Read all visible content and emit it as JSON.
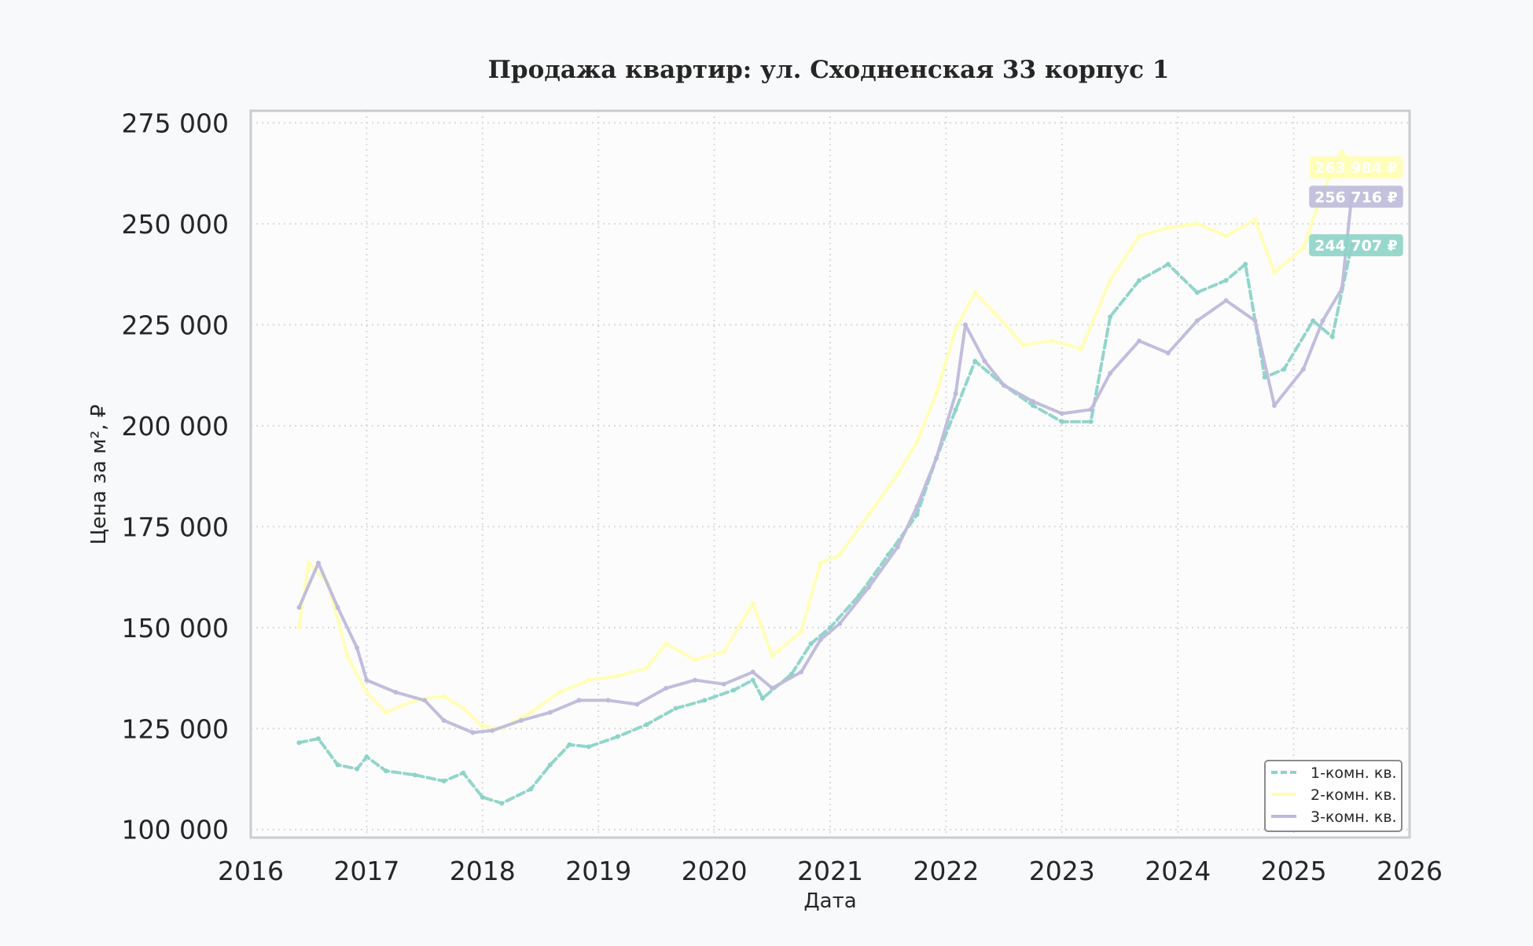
{
  "chart_data": {
    "type": "line",
    "title": "Продажа квартир: ул. Сходненская 33 корпус 1",
    "xlabel": "Дата",
    "ylabel": "Цена за м², ₽",
    "xlim": [
      2016,
      2026
    ],
    "ylim": [
      98000,
      278000
    ],
    "x_ticks": [
      "2016",
      "2017",
      "2018",
      "2019",
      "2020",
      "2021",
      "2022",
      "2023",
      "2024",
      "2025",
      "2026"
    ],
    "y_ticks": [
      {
        "value": 100000,
        "label": "100 000"
      },
      {
        "value": 125000,
        "label": "125 000"
      },
      {
        "value": 150000,
        "label": "150 000"
      },
      {
        "value": 175000,
        "label": "175 000"
      },
      {
        "value": 200000,
        "label": "200 000"
      },
      {
        "value": 225000,
        "label": "225 000"
      },
      {
        "value": 250000,
        "label": "250 000"
      },
      {
        "value": 275000,
        "label": "275 000"
      }
    ],
    "grid": true,
    "legend_position": "bottom-right",
    "series": [
      {
        "name": "1-комн. кв.",
        "color": "#8dd3c7",
        "line_style": "dashed",
        "end_label": "244 707 ₽",
        "end_value": 244707,
        "points": [
          [
            "2016-06",
            121500
          ],
          [
            "2016-08",
            122500
          ],
          [
            "2016-10",
            116000
          ],
          [
            "2016-12",
            115000
          ],
          [
            "2017-01",
            118000
          ],
          [
            "2017-03",
            114500
          ],
          [
            "2017-06",
            113500
          ],
          [
            "2017-09",
            112000
          ],
          [
            "2017-11",
            114000
          ],
          [
            "2018-01",
            108000
          ],
          [
            "2018-03",
            106500
          ],
          [
            "2018-06",
            110000
          ],
          [
            "2018-08",
            116000
          ],
          [
            "2018-10",
            121000
          ],
          [
            "2018-12",
            120500
          ],
          [
            "2019-03",
            123000
          ],
          [
            "2019-06",
            126000
          ],
          [
            "2019-09",
            130000
          ],
          [
            "2019-12",
            132000
          ],
          [
            "2020-03",
            134500
          ],
          [
            "2020-05",
            137000
          ],
          [
            "2020-06",
            132500
          ],
          [
            "2020-09",
            138500
          ],
          [
            "2020-11",
            146000
          ],
          [
            "2021-01",
            150000
          ],
          [
            "2021-04",
            158000
          ],
          [
            "2021-07",
            168000
          ],
          [
            "2021-10",
            178000
          ],
          [
            "2021-12",
            192000
          ],
          [
            "2022-02",
            204000
          ],
          [
            "2022-04",
            216000
          ],
          [
            "2022-07",
            210000
          ],
          [
            "2022-10",
            205000
          ],
          [
            "2023-01",
            201000
          ],
          [
            "2023-04",
            201000
          ],
          [
            "2023-06",
            227000
          ],
          [
            "2023-09",
            236000
          ],
          [
            "2023-12",
            240000
          ],
          [
            "2024-03",
            233000
          ],
          [
            "2024-06",
            236000
          ],
          [
            "2024-08",
            240000
          ],
          [
            "2024-10",
            212000
          ],
          [
            "2024-12",
            214000
          ],
          [
            "2025-03",
            226000
          ],
          [
            "2025-05",
            222000
          ],
          [
            "2025-07",
            244707
          ]
        ]
      },
      {
        "name": "2-комн. кв.",
        "color": "#ffffb3",
        "line_style": "solid",
        "end_label": "263 984 ₽",
        "end_value": 263984,
        "points": [
          [
            "2016-06",
            150000
          ],
          [
            "2016-07",
            166000
          ],
          [
            "2016-09",
            161000
          ],
          [
            "2016-11",
            143000
          ],
          [
            "2017-01",
            134000
          ],
          [
            "2017-03",
            129000
          ],
          [
            "2017-06",
            132000
          ],
          [
            "2017-09",
            133000
          ],
          [
            "2017-11",
            130000
          ],
          [
            "2018-01",
            125500
          ],
          [
            "2018-03",
            125000
          ],
          [
            "2018-06",
            129000
          ],
          [
            "2018-09",
            134000
          ],
          [
            "2018-12",
            137000
          ],
          [
            "2019-03",
            138000
          ],
          [
            "2019-06",
            140000
          ],
          [
            "2019-08",
            146000
          ],
          [
            "2019-11",
            142000
          ],
          [
            "2020-02",
            144000
          ],
          [
            "2020-05",
            156000
          ],
          [
            "2020-07",
            143000
          ],
          [
            "2020-10",
            149000
          ],
          [
            "2020-12",
            166000
          ],
          [
            "2021-02",
            168000
          ],
          [
            "2021-05",
            178000
          ],
          [
            "2021-08",
            188000
          ],
          [
            "2021-10",
            196000
          ],
          [
            "2021-12",
            208000
          ],
          [
            "2022-02",
            224000
          ],
          [
            "2022-04",
            233000
          ],
          [
            "2022-06",
            228000
          ],
          [
            "2022-09",
            220000
          ],
          [
            "2022-12",
            221000
          ],
          [
            "2023-03",
            219000
          ],
          [
            "2023-06",
            236000
          ],
          [
            "2023-09",
            247000
          ],
          [
            "2023-12",
            249000
          ],
          [
            "2024-03",
            250000
          ],
          [
            "2024-06",
            247000
          ],
          [
            "2024-09",
            251000
          ],
          [
            "2024-11",
            238000
          ],
          [
            "2025-02",
            244000
          ],
          [
            "2025-04",
            258000
          ],
          [
            "2025-06",
            268000
          ],
          [
            "2025-07",
            263984
          ]
        ]
      },
      {
        "name": "3-комн. кв.",
        "color": "#bebada",
        "line_style": "solid",
        "end_label": "256 716 ₽",
        "end_value": 256716,
        "points": [
          [
            "2016-06",
            155000
          ],
          [
            "2016-08",
            166000
          ],
          [
            "2016-10",
            155000
          ],
          [
            "2016-12",
            145000
          ],
          [
            "2017-01",
            137000
          ],
          [
            "2017-04",
            134000
          ],
          [
            "2017-07",
            132000
          ],
          [
            "2017-09",
            127000
          ],
          [
            "2017-12",
            124000
          ],
          [
            "2018-02",
            124500
          ],
          [
            "2018-05",
            127000
          ],
          [
            "2018-08",
            129000
          ],
          [
            "2018-11",
            132000
          ],
          [
            "2019-02",
            132000
          ],
          [
            "2019-05",
            131000
          ],
          [
            "2019-08",
            135000
          ],
          [
            "2019-11",
            137000
          ],
          [
            "2020-02",
            136000
          ],
          [
            "2020-05",
            139000
          ],
          [
            "2020-07",
            135000
          ],
          [
            "2020-10",
            139000
          ],
          [
            "2020-12",
            147000
          ],
          [
            "2021-02",
            151000
          ],
          [
            "2021-05",
            160000
          ],
          [
            "2021-08",
            170000
          ],
          [
            "2021-10",
            180000
          ],
          [
            "2021-12",
            192000
          ],
          [
            "2022-02",
            208000
          ],
          [
            "2022-03",
            225000
          ],
          [
            "2022-05",
            216000
          ],
          [
            "2022-07",
            210000
          ],
          [
            "2022-10",
            206000
          ],
          [
            "2023-01",
            203000
          ],
          [
            "2023-04",
            204000
          ],
          [
            "2023-06",
            213000
          ],
          [
            "2023-09",
            221000
          ],
          [
            "2023-12",
            218000
          ],
          [
            "2024-03",
            226000
          ],
          [
            "2024-06",
            231000
          ],
          [
            "2024-09",
            226000
          ],
          [
            "2024-11",
            205000
          ],
          [
            "2025-02",
            214000
          ],
          [
            "2025-04",
            226000
          ],
          [
            "2025-06",
            234000
          ],
          [
            "2025-07",
            256716
          ]
        ]
      }
    ]
  }
}
